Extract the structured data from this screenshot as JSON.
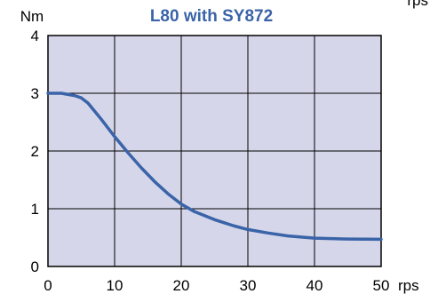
{
  "corner_text": "rps",
  "chart_data": {
    "type": "line",
    "title": "L80 with SY872",
    "ylabel": "Nm",
    "xlabel": "rps",
    "xlim": [
      0,
      50
    ],
    "ylim": [
      0,
      4
    ],
    "xticks": [
      0,
      10,
      20,
      30,
      40,
      50
    ],
    "yticks": [
      0,
      1,
      2,
      3,
      4
    ],
    "grid": true,
    "series": [
      {
        "x": [
          0,
          2,
          4,
          5,
          6,
          8,
          10,
          12,
          14,
          16,
          18,
          20,
          22,
          25,
          28,
          30,
          33,
          36,
          40,
          45,
          50
        ],
        "y": [
          3.0,
          3.0,
          2.96,
          2.92,
          2.83,
          2.55,
          2.25,
          1.97,
          1.71,
          1.47,
          1.26,
          1.08,
          0.95,
          0.81,
          0.7,
          0.64,
          0.58,
          0.53,
          0.49,
          0.475,
          0.47
        ]
      }
    ]
  },
  "colors": {
    "plot_background": "#d6d6ea",
    "line": "#3a64a8",
    "title": "#3a64a8",
    "grid": "#000000"
  }
}
